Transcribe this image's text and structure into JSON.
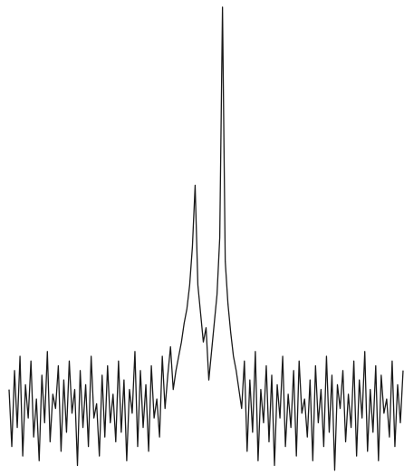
{
  "chart_data": {
    "type": "line",
    "color": "#1a1a1a",
    "ylim": [
      0,
      100
    ],
    "values": [
      18,
      6,
      22,
      10,
      25,
      4,
      19,
      12,
      24,
      8,
      16,
      3,
      21,
      11,
      26,
      7,
      17,
      14,
      23,
      5,
      20,
      9,
      24,
      13,
      18,
      2,
      22,
      10,
      19,
      6,
      25,
      12,
      15,
      4,
      21,
      8,
      23,
      11,
      17,
      7,
      24,
      9,
      20,
      3,
      18,
      13,
      26,
      6,
      22,
      10,
      19,
      5,
      23,
      12,
      16,
      8,
      25,
      14,
      21,
      27,
      18,
      22,
      25,
      28,
      32,
      35,
      40,
      48,
      61,
      40,
      34,
      28,
      31,
      20,
      26,
      32,
      38,
      50,
      98.5,
      45,
      36,
      30,
      25,
      22,
      18,
      14,
      24,
      5,
      20,
      9,
      26,
      3,
      18,
      11,
      23,
      7,
      21,
      2,
      19,
      12,
      25,
      6,
      17,
      10,
      22,
      4,
      24,
      13,
      16,
      8,
      20,
      3,
      23,
      11,
      18,
      6,
      25,
      9,
      21,
      1,
      19,
      14,
      22,
      7,
      17,
      10,
      24,
      4,
      20,
      12,
      26,
      5,
      18,
      9,
      23,
      3,
      21,
      13,
      16,
      8,
      24,
      6,
      19,
      11,
      22
    ]
  }
}
